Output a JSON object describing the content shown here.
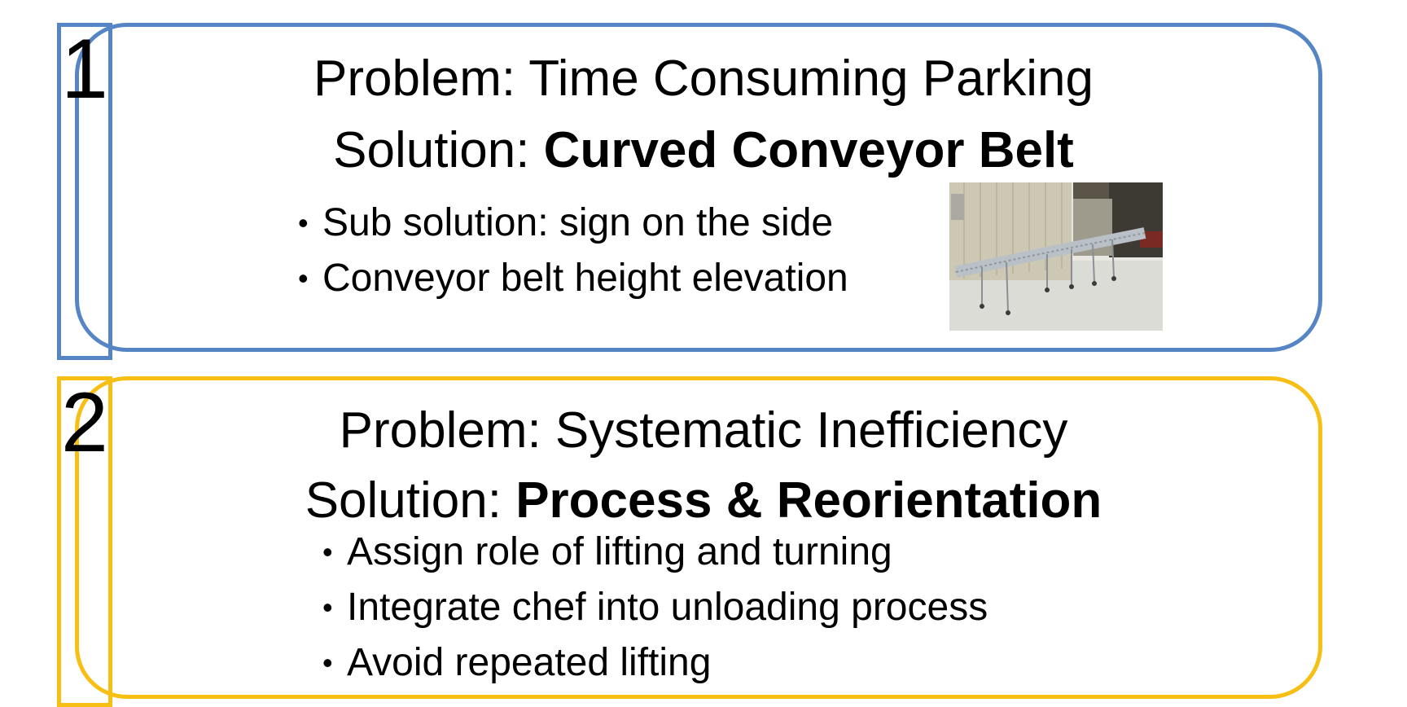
{
  "colors": {
    "card1_border": "#5585c4",
    "card1_number": "#4f7fc0",
    "card2_border": "#f7bf14",
    "card2_number": "#f5b800"
  },
  "cards": [
    {
      "number": "1",
      "problem": "Problem: Time Consuming Parking",
      "solution_prefix": "Solution: ",
      "solution_bold": "Curved Conveyor Belt",
      "bullets": [
        "Sub solution: sign on the side",
        "Conveyor belt height elevation"
      ],
      "image": "photo of a flexible curved roller conveyor extending from a truck"
    },
    {
      "number": "2",
      "problem": "Problem: Systematic Inefficiency",
      "solution_prefix": "Solution: ",
      "solution_bold": "Process & Reorientation",
      "bullets": [
        "Assign role of lifting and turning",
        "Integrate chef into unloading process",
        "Avoid repeated lifting"
      ]
    }
  ]
}
